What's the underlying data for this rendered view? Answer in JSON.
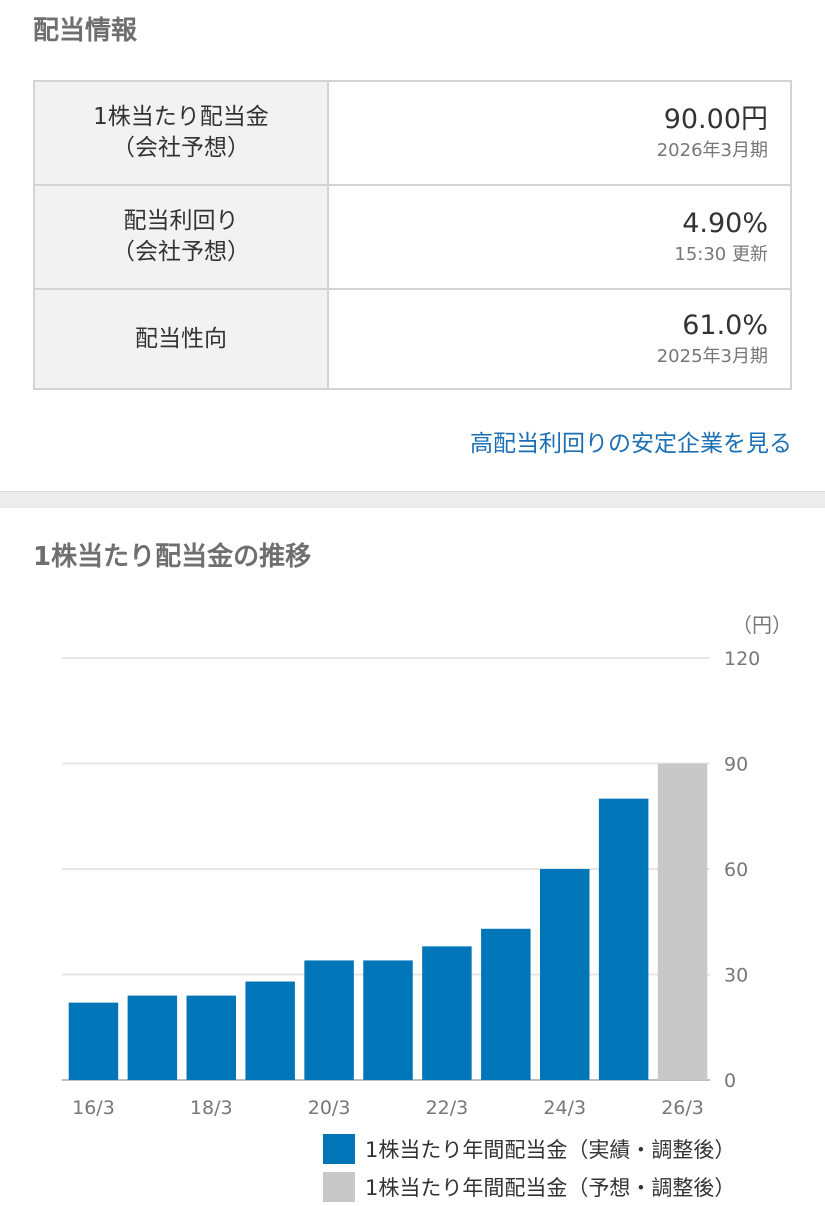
{
  "info": {
    "title": "配当情報",
    "rows": [
      {
        "label_line1": "1株当たり配当金",
        "label_line2": "（会社予想）",
        "value": "90.00円",
        "sub": "2026年3月期"
      },
      {
        "label_line1": "配当利回り",
        "label_line2": "（会社予想）",
        "value": "4.90%",
        "sub": "15:30 更新"
      },
      {
        "label_line1": "配当性向",
        "label_line2": "",
        "value": "61.0%",
        "sub": "2025年3月期"
      }
    ],
    "link_text": "高配当利回りの安定企業を見る"
  },
  "chart_section": {
    "title": "1株当たり配当金の推移"
  },
  "colors": {
    "actual": "#0075b8",
    "forecast": "#c8c8c8",
    "grid": "#e6e6e6",
    "link": "#1b6fb5"
  },
  "chart_data": {
    "type": "bar",
    "unit_label": "（円）",
    "categories": [
      "16/3",
      "17/3",
      "18/3",
      "19/3",
      "20/3",
      "21/3",
      "22/3",
      "23/3",
      "24/3",
      "25/3",
      "26/3"
    ],
    "tick_labels": [
      "16/3",
      "18/3",
      "20/3",
      "22/3",
      "24/3",
      "26/3"
    ],
    "values": [
      22,
      24,
      24,
      28,
      34,
      34,
      38,
      43,
      60,
      80,
      90
    ],
    "kinds": [
      "actual",
      "actual",
      "actual",
      "actual",
      "actual",
      "actual",
      "actual",
      "actual",
      "actual",
      "actual",
      "forecast"
    ],
    "ylim": [
      0,
      120
    ],
    "yticks": [
      0,
      30,
      60,
      90,
      120
    ],
    "grid": true,
    "legend_position": "bottom-right",
    "series": [
      {
        "name": "1株当たり年間配当金（実績・調整後）",
        "color": "#0075b8"
      },
      {
        "name": "1株当たり年間配当金（予想・調整後）",
        "color": "#c8c8c8"
      }
    ]
  }
}
